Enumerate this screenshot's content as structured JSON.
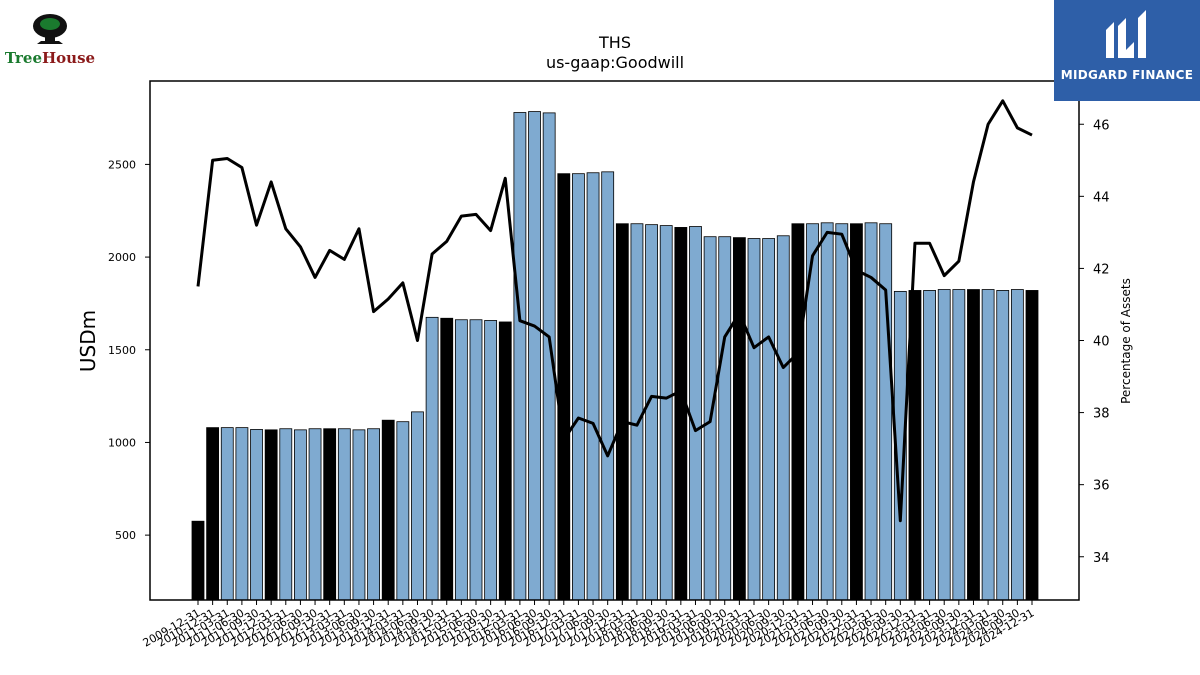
{
  "header": {
    "title": "THS",
    "subtitle": "us-gaap:Goodwill",
    "brand_left": "TreeHouse",
    "brand_left_tree": "Tree",
    "brand_left_house": "House",
    "brand_right": "MIDGARD FINANCE"
  },
  "colors": {
    "bar_light": "#7faad0",
    "bar_dark": "#000000",
    "line": "#000000",
    "brand_blue": "#2e5fa8",
    "treehouse_green": "#1a7a2e",
    "treehouse_red": "#8b1a1a"
  },
  "chart_data": {
    "type": "bar",
    "title": "THS",
    "subtitle": "us-gaap:Goodwill",
    "ylabel": "USDm",
    "y2label": "Percentage of Assets",
    "ylim": [
      150,
      2950
    ],
    "y2lim": [
      32.8,
      47.2
    ],
    "yticks": [
      500,
      1000,
      1500,
      2000,
      2500
    ],
    "y2ticks": [
      34,
      36,
      38,
      40,
      42,
      44,
      46
    ],
    "grid": false,
    "x": [
      "2009-12-31",
      "2010-12-31",
      "2011-03-31",
      "2011-06-30",
      "2011-09-30",
      "2011-12-31",
      "2012-03-31",
      "2012-06-30",
      "2012-09-30",
      "2012-12-31",
      "2013-03-31",
      "2013-06-30",
      "2013-09-30",
      "2013-12-31",
      "2014-03-31",
      "2014-06-30",
      "2014-09-30",
      "2014-12-31",
      "2015-03-31",
      "2015-06-30",
      "2015-09-30",
      "2015-12-31",
      "2016-03-31",
      "2016-06-30",
      "2016-09-30",
      "2016-12-31",
      "2017-03-31",
      "2017-06-30",
      "2017-09-30",
      "2017-12-31",
      "2018-03-31",
      "2018-06-30",
      "2018-09-30",
      "2018-12-31",
      "2019-03-31",
      "2019-06-30",
      "2019-09-30",
      "2019-12-31",
      "2020-03-31",
      "2020-06-30",
      "2020-09-30",
      "2020-12-31",
      "2021-03-31",
      "2021-06-30",
      "2021-09-30",
      "2021-12-31",
      "2022-03-31",
      "2022-06-30",
      "2022-09-30",
      "2022-12-31",
      "2023-03-31",
      "2023-06-30",
      "2023-09-30",
      "2023-12-31",
      "2024-03-31",
      "2024-06-30",
      "2024-09-30",
      "2024-12-31"
    ],
    "tick_labels": [
      "2009-12-31",
      "2010-12-31",
      "2011-03-31",
      "2011-06-30",
      "2011-09-30",
      "2011-12-31",
      "2012-03-31",
      "2012-06-30",
      "2012-09-30",
      "2012-12-31",
      "2013-03-31",
      "2013-06-30",
      "2013-09-30",
      "2013-12-31",
      "2014-03-31",
      "2014-06-30",
      "2014-09-30",
      "2014-12-31",
      "2015-03-31",
      "2015-06-30",
      "2015-09-30",
      "2015-12-31",
      "2016-03-31",
      "2016-06-30",
      "2016-09-30",
      "2016-12-31",
      "2017-03-31",
      "2017-06-30",
      "2017-09-30",
      "2017-12-31",
      "2018-03-31",
      "2018-06-30",
      "2018-09-30",
      "2018-12-31",
      "2019-03-31",
      "2019-06-30",
      "2019-09-30",
      "2019-12-31",
      "2020-03-31",
      "2020-06-30",
      "2020-09-30",
      "2020-12-31",
      "2021-03-31",
      "2021-06-30",
      "2021-09-30",
      "2021-12-31",
      "2022-03-31",
      "2022-06-30",
      "2022-09-30",
      "2022-12-31",
      "2023-03-31",
      "2023-06-30",
      "2023-09-30",
      "2023-12-31",
      "2024-03-31",
      "2024-06-30",
      "2024-09-30",
      "2024-12-31"
    ],
    "series": [
      {
        "axis": "left",
        "kind": "bar",
        "values": [
          575,
          1080,
          1080,
          1080,
          1070,
          1068,
          1074,
          1068,
          1074,
          1074,
          1074,
          1068,
          1074,
          1120,
          1112,
          1165,
          1675,
          1670,
          1662,
          1662,
          1658,
          1650,
          2780,
          2785,
          2778,
          2450,
          2450,
          2455,
          2460,
          2180,
          2180,
          2175,
          2170,
          2160,
          2165,
          2110,
          2110,
          2105,
          2100,
          2100,
          2115,
          2180,
          2180,
          2185,
          2180,
          2180,
          2185,
          2180,
          1815,
          1820,
          1820,
          1825,
          1825,
          1825,
          1825,
          1820,
          1825,
          1820
        ],
        "highlight": [
          true,
          true,
          false,
          false,
          false,
          true,
          false,
          false,
          false,
          true,
          false,
          false,
          false,
          true,
          false,
          false,
          false,
          true,
          false,
          false,
          false,
          true,
          false,
          false,
          false,
          true,
          false,
          false,
          false,
          true,
          false,
          false,
          false,
          true,
          false,
          false,
          false,
          true,
          false,
          false,
          false,
          true,
          false,
          false,
          false,
          true,
          false,
          false,
          false,
          true,
          false,
          false,
          false,
          true,
          false,
          false,
          false,
          true
        ]
      },
      {
        "axis": "right",
        "kind": "line",
        "values": [
          41.5,
          45.0,
          45.05,
          44.8,
          43.2,
          44.4,
          43.1,
          42.6,
          41.75,
          42.5,
          42.25,
          43.1,
          40.8,
          41.15,
          41.6,
          40.0,
          42.4,
          42.75,
          43.45,
          43.5,
          43.05,
          44.5,
          40.55,
          40.4,
          40.1,
          37.25,
          37.85,
          37.7,
          36.8,
          37.75,
          37.65,
          38.45,
          38.4,
          38.6,
          37.5,
          37.75,
          40.1,
          40.75,
          39.8,
          40.1,
          39.25,
          39.65,
          42.35,
          43.0,
          42.95,
          41.95,
          41.75,
          41.4,
          35.0,
          42.7,
          42.7,
          41.8,
          42.2,
          44.4,
          46.0,
          46.65,
          45.9,
          45.7
        ]
      }
    ]
  }
}
